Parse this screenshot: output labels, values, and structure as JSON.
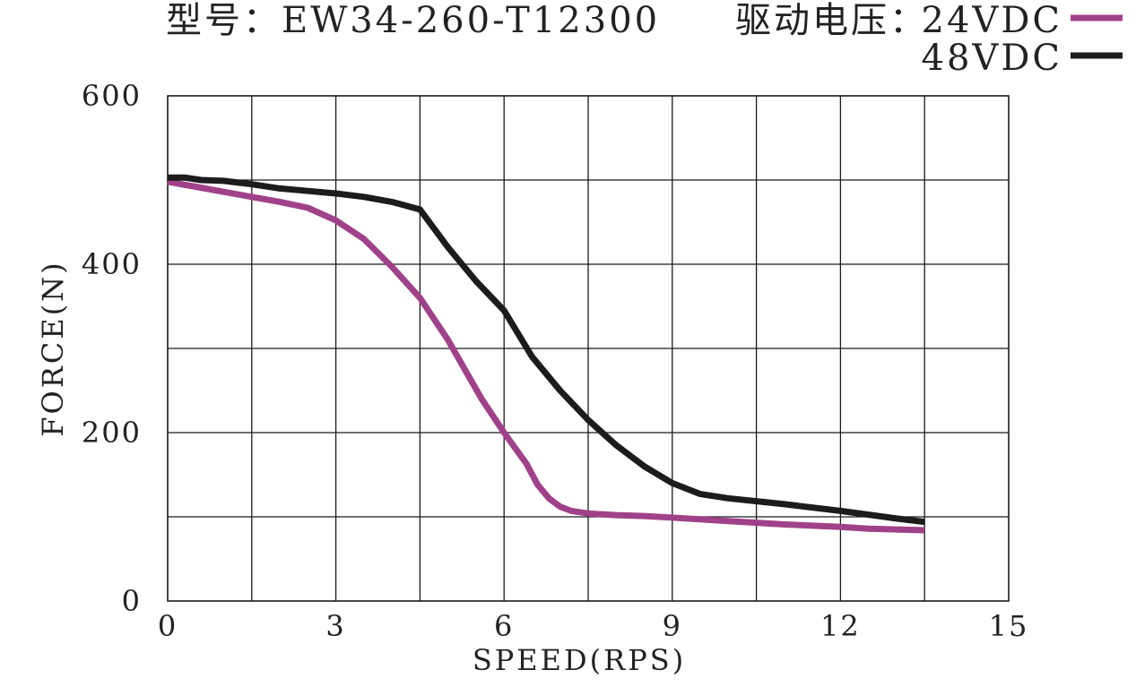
{
  "chart_data": {
    "type": "line",
    "title": "型号：EW34-260-T12300",
    "legend_title": "驱动电压：",
    "xlabel": "SPEED(RPS)",
    "ylabel": "FORCE(N)",
    "xlim": [
      0,
      15
    ],
    "ylim": [
      0,
      600
    ],
    "x_ticks": [
      "0",
      "3",
      "6",
      "9",
      "12",
      "15"
    ],
    "y_ticks": [
      "0",
      "200",
      "400",
      "600"
    ],
    "grid": true,
    "x_grid_step": 1.5,
    "y_grid_step": 100,
    "legend_position": "top-right",
    "series": [
      {
        "name": "24VDC",
        "color": "#a0428a",
        "x": [
          0,
          0.5,
          1,
          1.5,
          2,
          2.5,
          3,
          3.5,
          4,
          4.5,
          5,
          5.3,
          5.6,
          6,
          6.4,
          6.6,
          6.8,
          7,
          7.2,
          7.5,
          8,
          8.5,
          9,
          10,
          11,
          12,
          12.5,
          13,
          13.5
        ],
        "y": [
          498,
          492,
          486,
          480,
          474,
          467,
          452,
          430,
          397,
          360,
          310,
          275,
          240,
          200,
          163,
          138,
          122,
          112,
          107,
          104,
          102,
          101,
          99,
          95,
          91,
          88,
          86,
          85,
          84
        ]
      },
      {
        "name": "48VDC",
        "color": "#1c1c1c",
        "x": [
          0,
          0.3,
          0.6,
          1,
          1.5,
          2,
          2.5,
          3,
          3.5,
          4,
          4.5,
          5,
          5.5,
          6,
          6.5,
          7,
          7.5,
          8,
          8.5,
          9,
          9.5,
          10,
          11,
          12,
          13,
          13.5
        ],
        "y": [
          503,
          503,
          500,
          499,
          495,
          490,
          487,
          484,
          480,
          474,
          465,
          420,
          380,
          345,
          290,
          250,
          215,
          185,
          160,
          140,
          127,
          122,
          115,
          107,
          98,
          94
        ]
      }
    ]
  }
}
